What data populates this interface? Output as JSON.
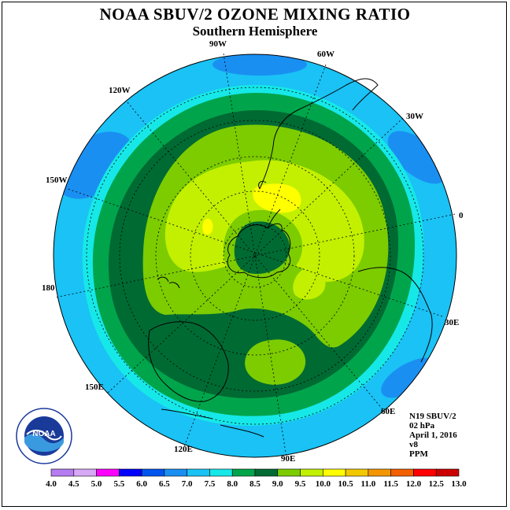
{
  "header": {
    "title": "NOAA SBUV/2 OZONE MIXING RATIO",
    "subtitle": "Southern Hemisphere"
  },
  "map": {
    "projection": "south polar stereographic",
    "longitude_labels": [
      "90W",
      "60W",
      "30W",
      "0",
      "30E",
      "60E",
      "90E",
      "120E",
      "150E",
      "180",
      "150W",
      "120W"
    ],
    "field_levels_ppm": [
      "8.0-8.5 outer ring",
      "8.5-9.0 dark ring",
      "9.0-10.5 interior",
      "8.5-9.0 polar core"
    ]
  },
  "info": {
    "satellite": "N19 SBUV/2",
    "level": "02 hPa",
    "date": "April 1, 2016",
    "version": "v8",
    "units": "PPM"
  },
  "logo": {
    "text": "NOAA"
  },
  "colorbar": {
    "ticks": [
      "4.0",
      "4.5",
      "5.0",
      "5.5",
      "6.0",
      "6.5",
      "7.0",
      "7.5",
      "8.0",
      "8.5",
      "9.0",
      "9.5",
      "10.0",
      "10.5",
      "11.0",
      "11.5",
      "12.0",
      "12.5",
      "13.0"
    ],
    "colors": [
      "#b57cf0",
      "#d7a8f5",
      "#ff00ff",
      "#0000ff",
      "#0055ee",
      "#1a8ff2",
      "#1ac2f5",
      "#16e8e8",
      "#00a54b",
      "#006a33",
      "#7ccc00",
      "#c2f000",
      "#ffff00",
      "#f2c800",
      "#f29600",
      "#f26000",
      "#ff0000",
      "#cc0000",
      "#7a4a2a"
    ]
  }
}
